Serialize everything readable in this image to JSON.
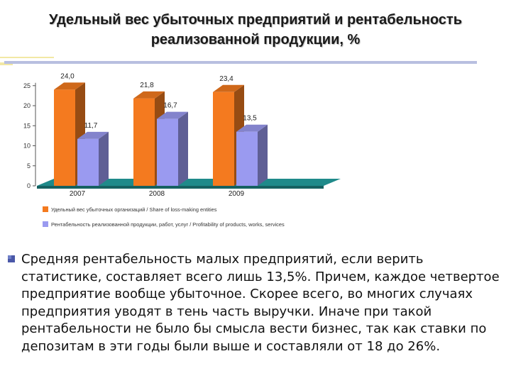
{
  "slide": {
    "title_line1": "Удельный вес убыточных предприятий и рентабельность",
    "title_line2": "реализованной продукции, %",
    "bullet_text": "Средняя рентабельность малых предприятий, если верить статистике, составляет всего лишь 13,5%. Причем, каждое четвертое предприятие вообще убыточное. Скорее всего, во многих случаях предприятия уводят в тень часть выручки. Иначе при такой рентабельности не было бы смысла вести бизнес, так как ставки по депозитам в эти годы были выше и составляли от 18 до 26%."
  },
  "chart_data": {
    "type": "bar",
    "categories": [
      "2007",
      "2008",
      "2009"
    ],
    "series": [
      {
        "name": "Удельный вес убыточных организаций / Share of loss-making entities",
        "values": [
          24.0,
          21.8,
          23.4
        ],
        "labels": [
          "24,0",
          "21,8",
          "23,4"
        ],
        "color": "#f47a1f"
      },
      {
        "name": "Рентабельность реализованной продукции, работ, услуг / Profitability of products, works, services",
        "values": [
          11.7,
          16.7,
          13.5
        ],
        "labels": [
          "11,7",
          "16,7",
          "13,5"
        ],
        "color": "#9a9af0"
      }
    ],
    "yticks": [
      "0",
      "5",
      "10",
      "15",
      "20",
      "25"
    ],
    "ylim": [
      0,
      25
    ],
    "floor_color": "#1f8a8a",
    "grid": false,
    "legend_position": "bottom-left"
  }
}
